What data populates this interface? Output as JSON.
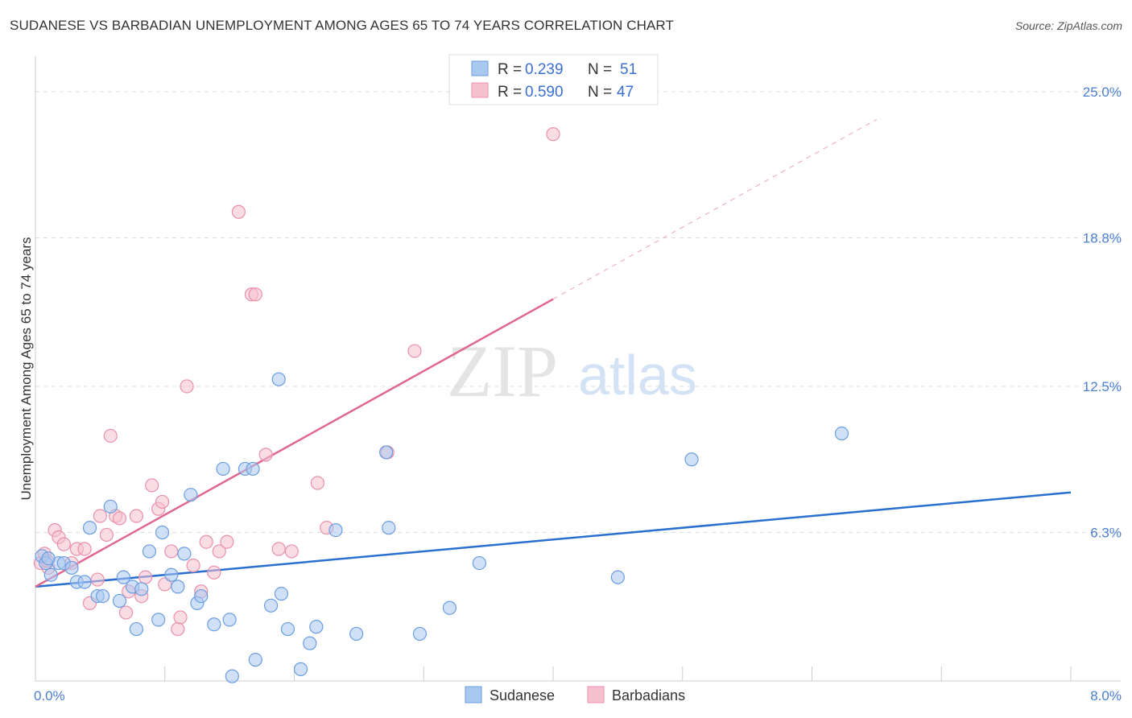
{
  "title": "SUDANESE VS BARBADIAN UNEMPLOYMENT AMONG AGES 65 TO 74 YEARS CORRELATION CHART",
  "source": "Source: ZipAtlas.com",
  "watermark": {
    "zip": "ZIP",
    "atlas": "atlas"
  },
  "colors": {
    "sudanese_fill": "#a9c8f0",
    "sudanese_stroke": "#6a9de0",
    "sudanese_line": "#2a6fd0",
    "barbadian_fill": "#f6bfd0",
    "barbadian_stroke": "#e890aa",
    "barbadian_line": "#e06890",
    "tick_text": "#4a7fd0",
    "grid": "#dddddd"
  },
  "legend": {
    "rows": [
      {
        "r_label": "R =",
        "r_value": "0.239",
        "n_label": "N =",
        "n_value": "51"
      },
      {
        "r_label": "R =",
        "r_value": "0.590",
        "n_label": "N =",
        "n_value": "47"
      }
    ]
  },
  "bottom_legend": {
    "items": [
      "Sudanese",
      "Barbadians"
    ]
  },
  "chart_data": {
    "type": "scatter",
    "title": "SUDANESE VS BARBADIAN UNEMPLOYMENT AMONG AGES 65 TO 74 YEARS CORRELATION CHART",
    "xlabel": "",
    "ylabel": "Unemployment Among Ages 65 to 74 years",
    "xlim": [
      0,
      8
    ],
    "ylim": [
      0,
      26.5
    ],
    "x_tick_labels": [
      "0.0%",
      "8.0%"
    ],
    "y_ticks": [
      6.3,
      12.5,
      18.8,
      25.0
    ],
    "y_tick_labels": [
      "6.3%",
      "12.5%",
      "18.8%",
      "25.0%"
    ],
    "series": [
      {
        "name": "Sudanese",
        "R": 0.239,
        "N": 51,
        "trend": {
          "x0": 0,
          "y0": 4.0,
          "x1": 8.0,
          "y1": 8.0,
          "dashed_to_x": null
        },
        "points": [
          [
            0.05,
            5.3
          ],
          [
            0.08,
            5.0
          ],
          [
            0.12,
            4.5
          ],
          [
            0.18,
            5.0
          ],
          [
            0.22,
            5.0
          ],
          [
            0.28,
            4.8
          ],
          [
            0.32,
            4.2
          ],
          [
            0.38,
            4.2
          ],
          [
            0.42,
            6.5
          ],
          [
            0.48,
            3.6
          ],
          [
            0.52,
            3.6
          ],
          [
            0.58,
            7.4
          ],
          [
            0.65,
            3.4
          ],
          [
            0.68,
            4.4
          ],
          [
            0.75,
            4.0
          ],
          [
            0.78,
            2.2
          ],
          [
            0.82,
            3.9
          ],
          [
            0.88,
            5.5
          ],
          [
            0.95,
            2.6
          ],
          [
            0.98,
            6.3
          ],
          [
            1.05,
            4.5
          ],
          [
            1.1,
            4.0
          ],
          [
            1.15,
            5.4
          ],
          [
            1.2,
            7.9
          ],
          [
            1.25,
            3.3
          ],
          [
            1.28,
            3.6
          ],
          [
            1.38,
            2.4
          ],
          [
            1.45,
            9.0
          ],
          [
            1.5,
            2.6
          ],
          [
            1.52,
            0.2
          ],
          [
            1.62,
            9.0
          ],
          [
            1.68,
            9.0
          ],
          [
            1.7,
            0.9
          ],
          [
            1.82,
            3.2
          ],
          [
            1.88,
            12.8
          ],
          [
            1.9,
            3.7
          ],
          [
            1.95,
            2.2
          ],
          [
            2.05,
            0.5
          ],
          [
            2.12,
            1.6
          ],
          [
            2.17,
            2.3
          ],
          [
            2.32,
            6.4
          ],
          [
            2.48,
            2.0
          ],
          [
            2.71,
            9.7
          ],
          [
            2.73,
            6.5
          ],
          [
            2.97,
            2.0
          ],
          [
            3.2,
            3.1
          ],
          [
            3.43,
            5.0
          ],
          [
            4.5,
            4.4
          ],
          [
            5.07,
            9.4
          ],
          [
            6.23,
            10.5
          ],
          [
            0.1,
            5.2
          ]
        ]
      },
      {
        "name": "Barbadians",
        "R": 0.59,
        "N": 47,
        "trend": {
          "x0": 0,
          "y0": 4.0,
          "x1": 4.0,
          "y1": 16.2,
          "dashed_to_x": 6.5
        },
        "points": [
          [
            0.04,
            5.0
          ],
          [
            0.07,
            5.4
          ],
          [
            0.1,
            4.8
          ],
          [
            0.15,
            6.4
          ],
          [
            0.18,
            6.1
          ],
          [
            0.22,
            5.8
          ],
          [
            0.28,
            5.0
          ],
          [
            0.32,
            5.6
          ],
          [
            0.38,
            5.6
          ],
          [
            0.42,
            3.3
          ],
          [
            0.48,
            4.3
          ],
          [
            0.5,
            7.0
          ],
          [
            0.55,
            6.2
          ],
          [
            0.58,
            10.4
          ],
          [
            0.62,
            7.0
          ],
          [
            0.65,
            6.9
          ],
          [
            0.7,
            2.9
          ],
          [
            0.72,
            3.8
          ],
          [
            0.78,
            7.0
          ],
          [
            0.82,
            3.6
          ],
          [
            0.85,
            4.4
          ],
          [
            0.9,
            8.3
          ],
          [
            0.95,
            7.3
          ],
          [
            0.98,
            7.6
          ],
          [
            1.0,
            4.1
          ],
          [
            1.05,
            5.5
          ],
          [
            1.1,
            2.2
          ],
          [
            1.12,
            2.7
          ],
          [
            1.17,
            12.5
          ],
          [
            1.22,
            4.9
          ],
          [
            1.28,
            3.8
          ],
          [
            1.32,
            5.9
          ],
          [
            1.38,
            4.6
          ],
          [
            1.42,
            5.5
          ],
          [
            1.48,
            5.9
          ],
          [
            1.57,
            19.9
          ],
          [
            1.67,
            16.4
          ],
          [
            1.7,
            16.4
          ],
          [
            1.78,
            9.6
          ],
          [
            1.88,
            5.6
          ],
          [
            1.98,
            5.5
          ],
          [
            2.18,
            8.4
          ],
          [
            2.25,
            6.5
          ],
          [
            2.72,
            9.7
          ],
          [
            2.93,
            14.0
          ],
          [
            4.0,
            23.2
          ],
          [
            0.09,
            5.1
          ]
        ]
      }
    ]
  }
}
